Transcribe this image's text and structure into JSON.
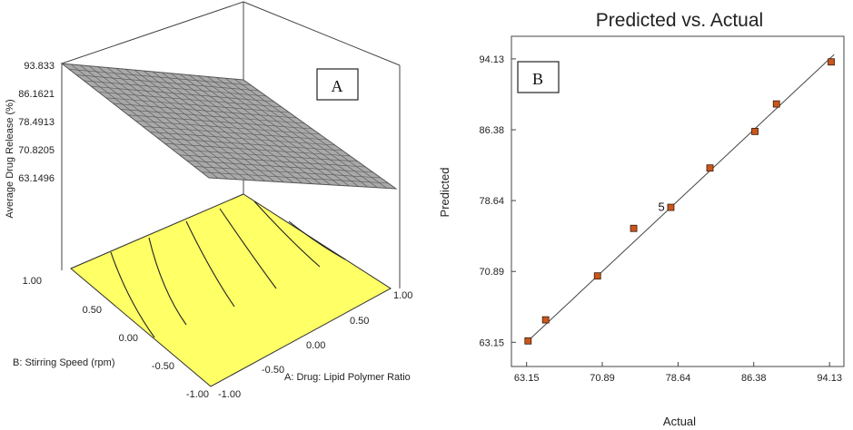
{
  "chart_data": [
    {
      "type": "surface",
      "panel_label": "A",
      "zlabel": "Average Drug Release (%)",
      "xlabel": "A: Drug: Lipid Polymer Ratio",
      "ylabel": "B: Stirring Speed (rpm)",
      "x_ticks": [
        "-1.00",
        "-0.50",
        "0.00",
        "0.50",
        "1.00"
      ],
      "y_ticks": [
        "-1.00",
        "-0.50",
        "0.00",
        "0.50",
        "1.00"
      ],
      "z_ticks": [
        "63.1496",
        "70.8205",
        "78.4913",
        "86.1621",
        "93.833"
      ],
      "zlim": [
        63.1496,
        93.833
      ],
      "surface_color": "#a9a9a9",
      "contour_color": "#ffff66"
    },
    {
      "type": "scatter",
      "panel_label": "B",
      "title": "Predicted vs. Actual",
      "xlabel": "Actual",
      "ylabel": "Predicted",
      "x_ticks": [
        "63.15",
        "70.89",
        "78.64",
        "86.38",
        "94.13"
      ],
      "y_ticks": [
        "63.15",
        "70.89",
        "78.64",
        "86.38",
        "94.13"
      ],
      "xlim": [
        61.6,
        95.6
      ],
      "ylim": [
        60.5,
        96.6
      ],
      "annotation": "5",
      "marker_color": "#c8571e",
      "points": [
        {
          "x": 63.3,
          "y": 63.3
        },
        {
          "x": 65.1,
          "y": 65.6
        },
        {
          "x": 70.4,
          "y": 70.4
        },
        {
          "x": 74.1,
          "y": 75.6
        },
        {
          "x": 77.9,
          "y": 77.9
        },
        {
          "x": 81.9,
          "y": 82.2
        },
        {
          "x": 86.5,
          "y": 86.2
        },
        {
          "x": 88.7,
          "y": 89.2
        },
        {
          "x": 94.3,
          "y": 93.8
        }
      ],
      "fit_line": [
        {
          "x": 63.0,
          "y": 63.0
        },
        {
          "x": 94.6,
          "y": 94.6
        }
      ]
    }
  ]
}
